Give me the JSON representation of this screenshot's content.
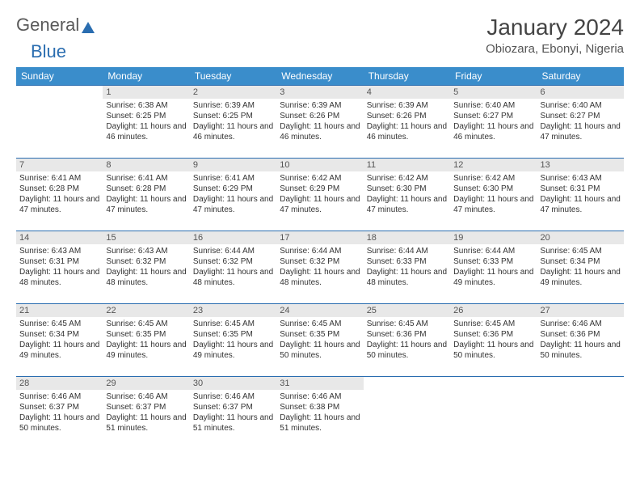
{
  "logo": {
    "word1": "General",
    "word2": "Blue"
  },
  "title": "January 2024",
  "location": "Obiozara, Ebonyi, Nigeria",
  "colors": {
    "header_bg": "#3a8dcb",
    "header_text": "#ffffff",
    "border": "#2a6db0",
    "daynum_bg": "#e8e8e8",
    "text": "#333333"
  },
  "weekdays": [
    "Sunday",
    "Monday",
    "Tuesday",
    "Wednesday",
    "Thursday",
    "Friday",
    "Saturday"
  ],
  "start_offset": 1,
  "days": [
    {
      "n": 1,
      "sunrise": "6:38 AM",
      "sunset": "6:25 PM",
      "dl": "11 hours and 46 minutes."
    },
    {
      "n": 2,
      "sunrise": "6:39 AM",
      "sunset": "6:25 PM",
      "dl": "11 hours and 46 minutes."
    },
    {
      "n": 3,
      "sunrise": "6:39 AM",
      "sunset": "6:26 PM",
      "dl": "11 hours and 46 minutes."
    },
    {
      "n": 4,
      "sunrise": "6:39 AM",
      "sunset": "6:26 PM",
      "dl": "11 hours and 46 minutes."
    },
    {
      "n": 5,
      "sunrise": "6:40 AM",
      "sunset": "6:27 PM",
      "dl": "11 hours and 46 minutes."
    },
    {
      "n": 6,
      "sunrise": "6:40 AM",
      "sunset": "6:27 PM",
      "dl": "11 hours and 47 minutes."
    },
    {
      "n": 7,
      "sunrise": "6:41 AM",
      "sunset": "6:28 PM",
      "dl": "11 hours and 47 minutes."
    },
    {
      "n": 8,
      "sunrise": "6:41 AM",
      "sunset": "6:28 PM",
      "dl": "11 hours and 47 minutes."
    },
    {
      "n": 9,
      "sunrise": "6:41 AM",
      "sunset": "6:29 PM",
      "dl": "11 hours and 47 minutes."
    },
    {
      "n": 10,
      "sunrise": "6:42 AM",
      "sunset": "6:29 PM",
      "dl": "11 hours and 47 minutes."
    },
    {
      "n": 11,
      "sunrise": "6:42 AM",
      "sunset": "6:30 PM",
      "dl": "11 hours and 47 minutes."
    },
    {
      "n": 12,
      "sunrise": "6:42 AM",
      "sunset": "6:30 PM",
      "dl": "11 hours and 47 minutes."
    },
    {
      "n": 13,
      "sunrise": "6:43 AM",
      "sunset": "6:31 PM",
      "dl": "11 hours and 47 minutes."
    },
    {
      "n": 14,
      "sunrise": "6:43 AM",
      "sunset": "6:31 PM",
      "dl": "11 hours and 48 minutes."
    },
    {
      "n": 15,
      "sunrise": "6:43 AM",
      "sunset": "6:32 PM",
      "dl": "11 hours and 48 minutes."
    },
    {
      "n": 16,
      "sunrise": "6:44 AM",
      "sunset": "6:32 PM",
      "dl": "11 hours and 48 minutes."
    },
    {
      "n": 17,
      "sunrise": "6:44 AM",
      "sunset": "6:32 PM",
      "dl": "11 hours and 48 minutes."
    },
    {
      "n": 18,
      "sunrise": "6:44 AM",
      "sunset": "6:33 PM",
      "dl": "11 hours and 48 minutes."
    },
    {
      "n": 19,
      "sunrise": "6:44 AM",
      "sunset": "6:33 PM",
      "dl": "11 hours and 49 minutes."
    },
    {
      "n": 20,
      "sunrise": "6:45 AM",
      "sunset": "6:34 PM",
      "dl": "11 hours and 49 minutes."
    },
    {
      "n": 21,
      "sunrise": "6:45 AM",
      "sunset": "6:34 PM",
      "dl": "11 hours and 49 minutes."
    },
    {
      "n": 22,
      "sunrise": "6:45 AM",
      "sunset": "6:35 PM",
      "dl": "11 hours and 49 minutes."
    },
    {
      "n": 23,
      "sunrise": "6:45 AM",
      "sunset": "6:35 PM",
      "dl": "11 hours and 49 minutes."
    },
    {
      "n": 24,
      "sunrise": "6:45 AM",
      "sunset": "6:35 PM",
      "dl": "11 hours and 50 minutes."
    },
    {
      "n": 25,
      "sunrise": "6:45 AM",
      "sunset": "6:36 PM",
      "dl": "11 hours and 50 minutes."
    },
    {
      "n": 26,
      "sunrise": "6:45 AM",
      "sunset": "6:36 PM",
      "dl": "11 hours and 50 minutes."
    },
    {
      "n": 27,
      "sunrise": "6:46 AM",
      "sunset": "6:36 PM",
      "dl": "11 hours and 50 minutes."
    },
    {
      "n": 28,
      "sunrise": "6:46 AM",
      "sunset": "6:37 PM",
      "dl": "11 hours and 50 minutes."
    },
    {
      "n": 29,
      "sunrise": "6:46 AM",
      "sunset": "6:37 PM",
      "dl": "11 hours and 51 minutes."
    },
    {
      "n": 30,
      "sunrise": "6:46 AM",
      "sunset": "6:37 PM",
      "dl": "11 hours and 51 minutes."
    },
    {
      "n": 31,
      "sunrise": "6:46 AM",
      "sunset": "6:38 PM",
      "dl": "11 hours and 51 minutes."
    }
  ]
}
